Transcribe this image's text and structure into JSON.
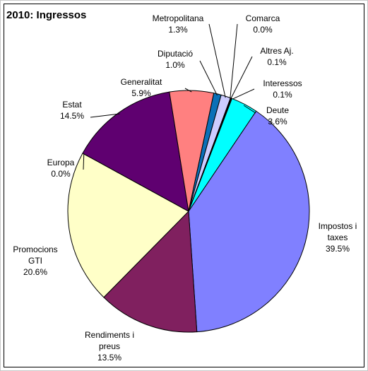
{
  "chart_data": {
    "type": "pie",
    "title": "2010: Ingressos",
    "categories": [
      "Impostos i taxes",
      "Rendiments i preus",
      "Promocions GTI",
      "Europa",
      "Estat",
      "Generalitat",
      "Diputació",
      "Metropolitana",
      "Comarca",
      "Altres Aj.",
      "Interessos",
      "Deute"
    ],
    "values": [
      39.5,
      13.5,
      20.6,
      0.0,
      14.5,
      5.9,
      1.0,
      1.3,
      0.0,
      0.1,
      0.1,
      3.6
    ],
    "value_labels": [
      "39.5%",
      "13.5%",
      "20.6%",
      "0.0%",
      "14.5%",
      "5.9%",
      "1.0%",
      "1.3%",
      "0.0%",
      "0.1%",
      "0.1%",
      "3.6%"
    ],
    "colors": [
      "#8080ff",
      "#80205f",
      "#ffffc8",
      "#ccffff",
      "#5f0070",
      "#ff8080",
      "#0a70b8",
      "#ccccff",
      "#000080",
      "#ff00ff",
      "#ffff00",
      "#00ffff"
    ]
  }
}
